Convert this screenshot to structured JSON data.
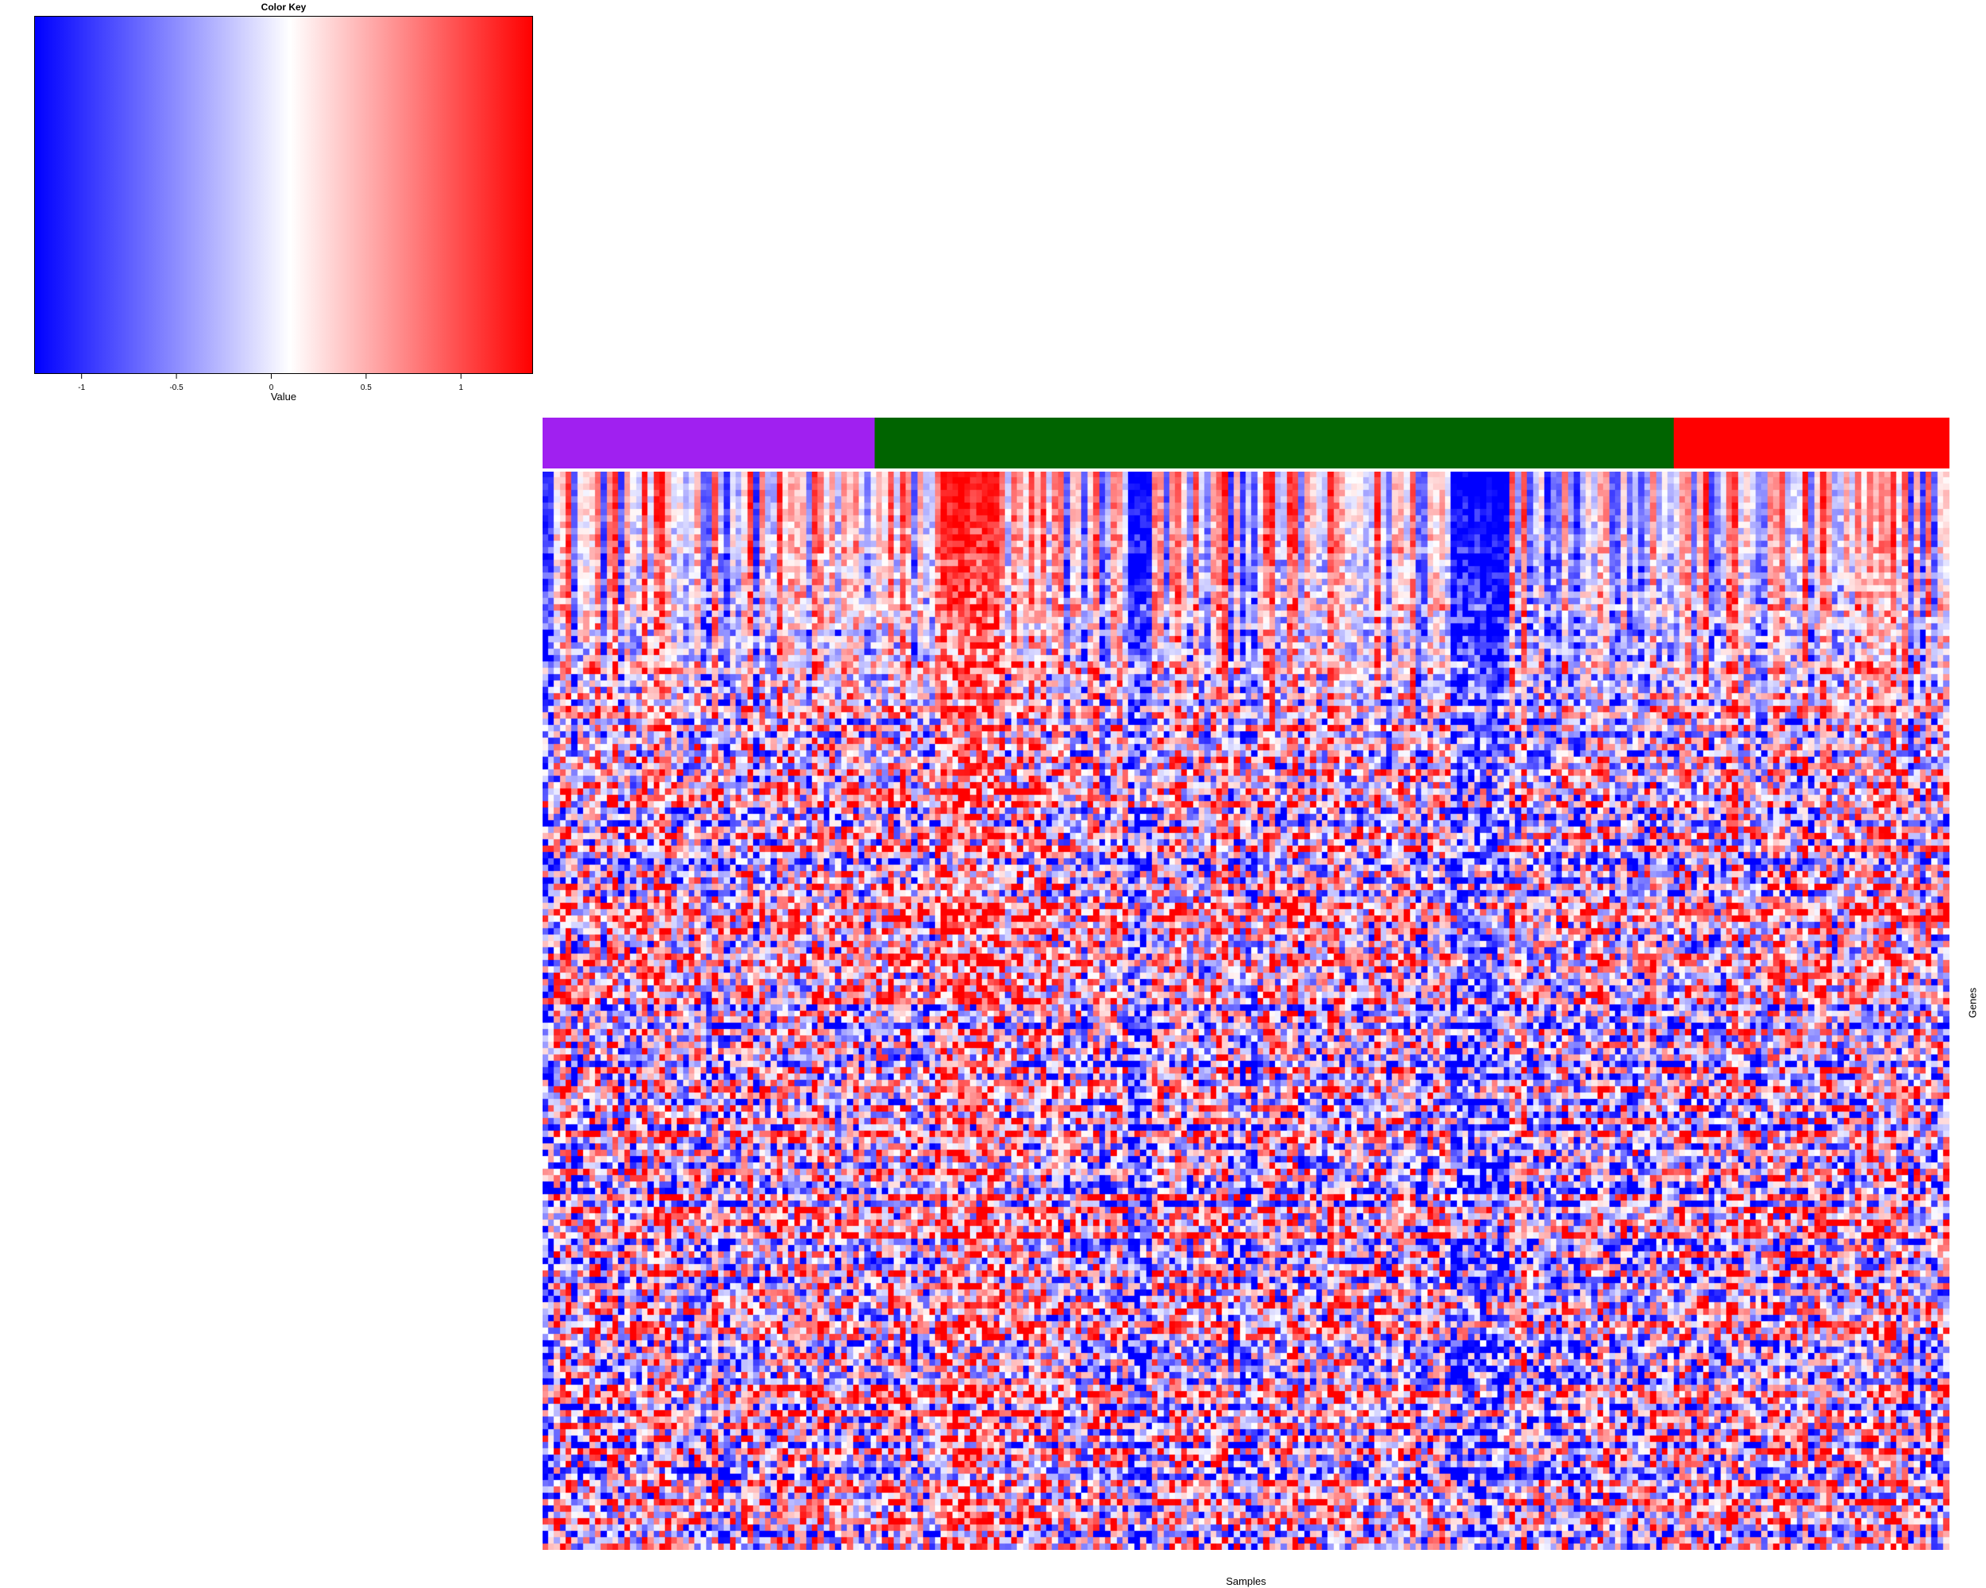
{
  "chart_data": {
    "type": "heatmap",
    "title": "",
    "xlabel": "Samples",
    "ylabel": "Genes",
    "n_rows": 170,
    "n_cols": 240,
    "color_key": {
      "title": "Color Key",
      "xlabel": "Value",
      "range": [
        -1.25,
        1.38
      ],
      "ticks": [
        -1,
        -0.5,
        0,
        0.5,
        1
      ],
      "tick_labels": [
        "-1",
        "-0.5",
        "0",
        "0.5",
        "1"
      ],
      "midpoint": 0.1,
      "colors": [
        "#0000ff",
        "#ffffff",
        "#ff0000"
      ]
    },
    "sample_groups": [
      {
        "color": "#a020f0",
        "fraction": 0.236
      },
      {
        "color": "#006400",
        "fraction": 0.568
      },
      {
        "color": "#ff0000",
        "fraction": 0.196
      }
    ]
  }
}
